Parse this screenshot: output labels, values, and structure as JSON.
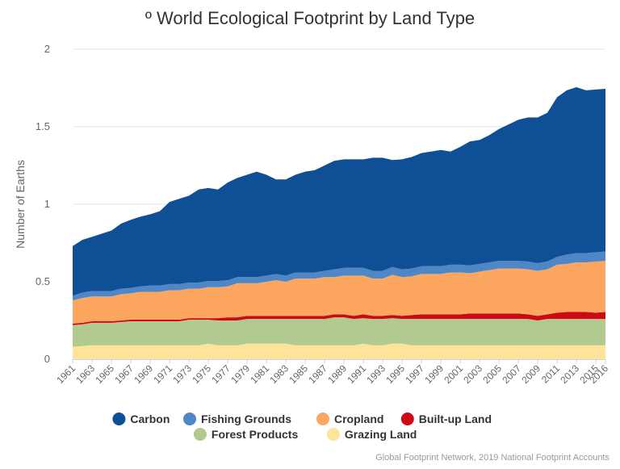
{
  "chart_data": {
    "type": "area",
    "stacked": true,
    "title": "º World Ecological Footprint by Land Type",
    "xlabel": "",
    "ylabel": "Number of Earths",
    "ylim": [
      0,
      2
    ],
    "yticks": [
      "0",
      "0.5",
      "1",
      "1.5",
      "2"
    ],
    "x": [
      1961,
      1962,
      1963,
      1964,
      1965,
      1966,
      1967,
      1968,
      1969,
      1970,
      1971,
      1972,
      1973,
      1974,
      1975,
      1976,
      1977,
      1978,
      1979,
      1980,
      1981,
      1982,
      1983,
      1984,
      1985,
      1986,
      1987,
      1988,
      1989,
      1990,
      1991,
      1992,
      1993,
      1994,
      1995,
      1996,
      1997,
      1998,
      1999,
      2000,
      2001,
      2002,
      2003,
      2004,
      2005,
      2006,
      2007,
      2008,
      2009,
      2010,
      2011,
      2012,
      2013,
      2014,
      2015,
      2016
    ],
    "xtick_labels": [
      "1961",
      "1963",
      "1965",
      "1967",
      "1969",
      "1971",
      "1973",
      "1975",
      "1977",
      "1979",
      "1981",
      "1983",
      "1985",
      "1987",
      "1989",
      "1991",
      "1993",
      "1995",
      "1997",
      "1999",
      "2001",
      "2003",
      "2005",
      "2007",
      "2009",
      "2011",
      "2013",
      "2015",
      "2016"
    ],
    "grid": true,
    "legend_position": "bottom",
    "series": [
      {
        "name": "Grazing Land",
        "color": "#fde49a",
        "values": [
          0.08,
          0.085,
          0.09,
          0.09,
          0.09,
          0.09,
          0.09,
          0.09,
          0.09,
          0.09,
          0.09,
          0.09,
          0.09,
          0.09,
          0.1,
          0.09,
          0.09,
          0.09,
          0.1,
          0.1,
          0.1,
          0.1,
          0.1,
          0.09,
          0.09,
          0.09,
          0.09,
          0.09,
          0.09,
          0.09,
          0.1,
          0.09,
          0.09,
          0.1,
          0.1,
          0.09,
          0.09,
          0.09,
          0.09,
          0.09,
          0.09,
          0.09,
          0.09,
          0.09,
          0.09,
          0.09,
          0.09,
          0.09,
          0.09,
          0.09,
          0.09,
          0.09,
          0.09,
          0.09,
          0.09,
          0.09
        ]
      },
      {
        "name": "Forest Products",
        "color": "#b2c98f",
        "values": [
          0.14,
          0.14,
          0.145,
          0.145,
          0.145,
          0.15,
          0.155,
          0.155,
          0.155,
          0.155,
          0.155,
          0.155,
          0.165,
          0.165,
          0.155,
          0.16,
          0.16,
          0.16,
          0.16,
          0.16,
          0.16,
          0.16,
          0.16,
          0.17,
          0.17,
          0.17,
          0.17,
          0.18,
          0.18,
          0.17,
          0.165,
          0.17,
          0.17,
          0.165,
          0.16,
          0.17,
          0.17,
          0.17,
          0.17,
          0.17,
          0.17,
          0.17,
          0.17,
          0.17,
          0.17,
          0.17,
          0.17,
          0.17,
          0.16,
          0.17,
          0.17,
          0.17,
          0.17,
          0.17,
          0.17,
          0.17
        ]
      },
      {
        "name": "Built-up Land",
        "color": "#cc0a16",
        "values": [
          0.01,
          0.01,
          0.01,
          0.01,
          0.01,
          0.01,
          0.01,
          0.01,
          0.01,
          0.01,
          0.01,
          0.01,
          0.01,
          0.01,
          0.01,
          0.015,
          0.02,
          0.02,
          0.02,
          0.02,
          0.02,
          0.02,
          0.02,
          0.02,
          0.02,
          0.02,
          0.02,
          0.02,
          0.02,
          0.02,
          0.025,
          0.02,
          0.02,
          0.02,
          0.02,
          0.025,
          0.03,
          0.03,
          0.03,
          0.03,
          0.03,
          0.035,
          0.035,
          0.035,
          0.035,
          0.035,
          0.035,
          0.03,
          0.03,
          0.03,
          0.04,
          0.045,
          0.045,
          0.045,
          0.04,
          0.045
        ]
      },
      {
        "name": "Cropland",
        "color": "#fca660",
        "values": [
          0.15,
          0.16,
          0.16,
          0.16,
          0.16,
          0.17,
          0.17,
          0.18,
          0.18,
          0.18,
          0.19,
          0.19,
          0.19,
          0.19,
          0.2,
          0.2,
          0.2,
          0.22,
          0.21,
          0.21,
          0.22,
          0.23,
          0.22,
          0.24,
          0.24,
          0.24,
          0.25,
          0.24,
          0.25,
          0.26,
          0.25,
          0.24,
          0.24,
          0.26,
          0.25,
          0.25,
          0.26,
          0.26,
          0.26,
          0.27,
          0.27,
          0.26,
          0.27,
          0.28,
          0.29,
          0.29,
          0.29,
          0.29,
          0.29,
          0.29,
          0.31,
          0.31,
          0.32,
          0.32,
          0.33,
          0.33
        ]
      },
      {
        "name": "Fishing Grounds",
        "color": "#4f86c6",
        "values": [
          0.03,
          0.035,
          0.035,
          0.035,
          0.035,
          0.035,
          0.035,
          0.035,
          0.04,
          0.04,
          0.04,
          0.04,
          0.04,
          0.04,
          0.04,
          0.04,
          0.04,
          0.04,
          0.04,
          0.04,
          0.04,
          0.04,
          0.04,
          0.04,
          0.04,
          0.04,
          0.04,
          0.05,
          0.05,
          0.05,
          0.05,
          0.05,
          0.05,
          0.05,
          0.05,
          0.05,
          0.05,
          0.05,
          0.05,
          0.05,
          0.05,
          0.05,
          0.05,
          0.05,
          0.05,
          0.05,
          0.05,
          0.05,
          0.05,
          0.05,
          0.05,
          0.06,
          0.06,
          0.06,
          0.06,
          0.06
        ]
      },
      {
        "name": "Carbon",
        "color": "#0e4f96",
        "values": [
          0.32,
          0.34,
          0.35,
          0.37,
          0.39,
          0.42,
          0.44,
          0.45,
          0.46,
          0.48,
          0.53,
          0.55,
          0.56,
          0.6,
          0.6,
          0.59,
          0.63,
          0.64,
          0.66,
          0.68,
          0.65,
          0.61,
          0.62,
          0.63,
          0.65,
          0.66,
          0.68,
          0.7,
          0.7,
          0.7,
          0.7,
          0.73,
          0.73,
          0.69,
          0.71,
          0.72,
          0.73,
          0.74,
          0.75,
          0.73,
          0.76,
          0.8,
          0.8,
          0.82,
          0.85,
          0.88,
          0.91,
          0.93,
          0.94,
          0.96,
          1.03,
          1.06,
          1.07,
          1.05,
          1.05,
          1.05
        ]
      }
    ],
    "legend_order": [
      "Carbon",
      "Fishing Grounds",
      "Cropland",
      "Built-up Land",
      "Forest Products",
      "Grazing Land"
    ],
    "credit": "Global Footprint Network, 2019 National Footprint Accounts"
  }
}
